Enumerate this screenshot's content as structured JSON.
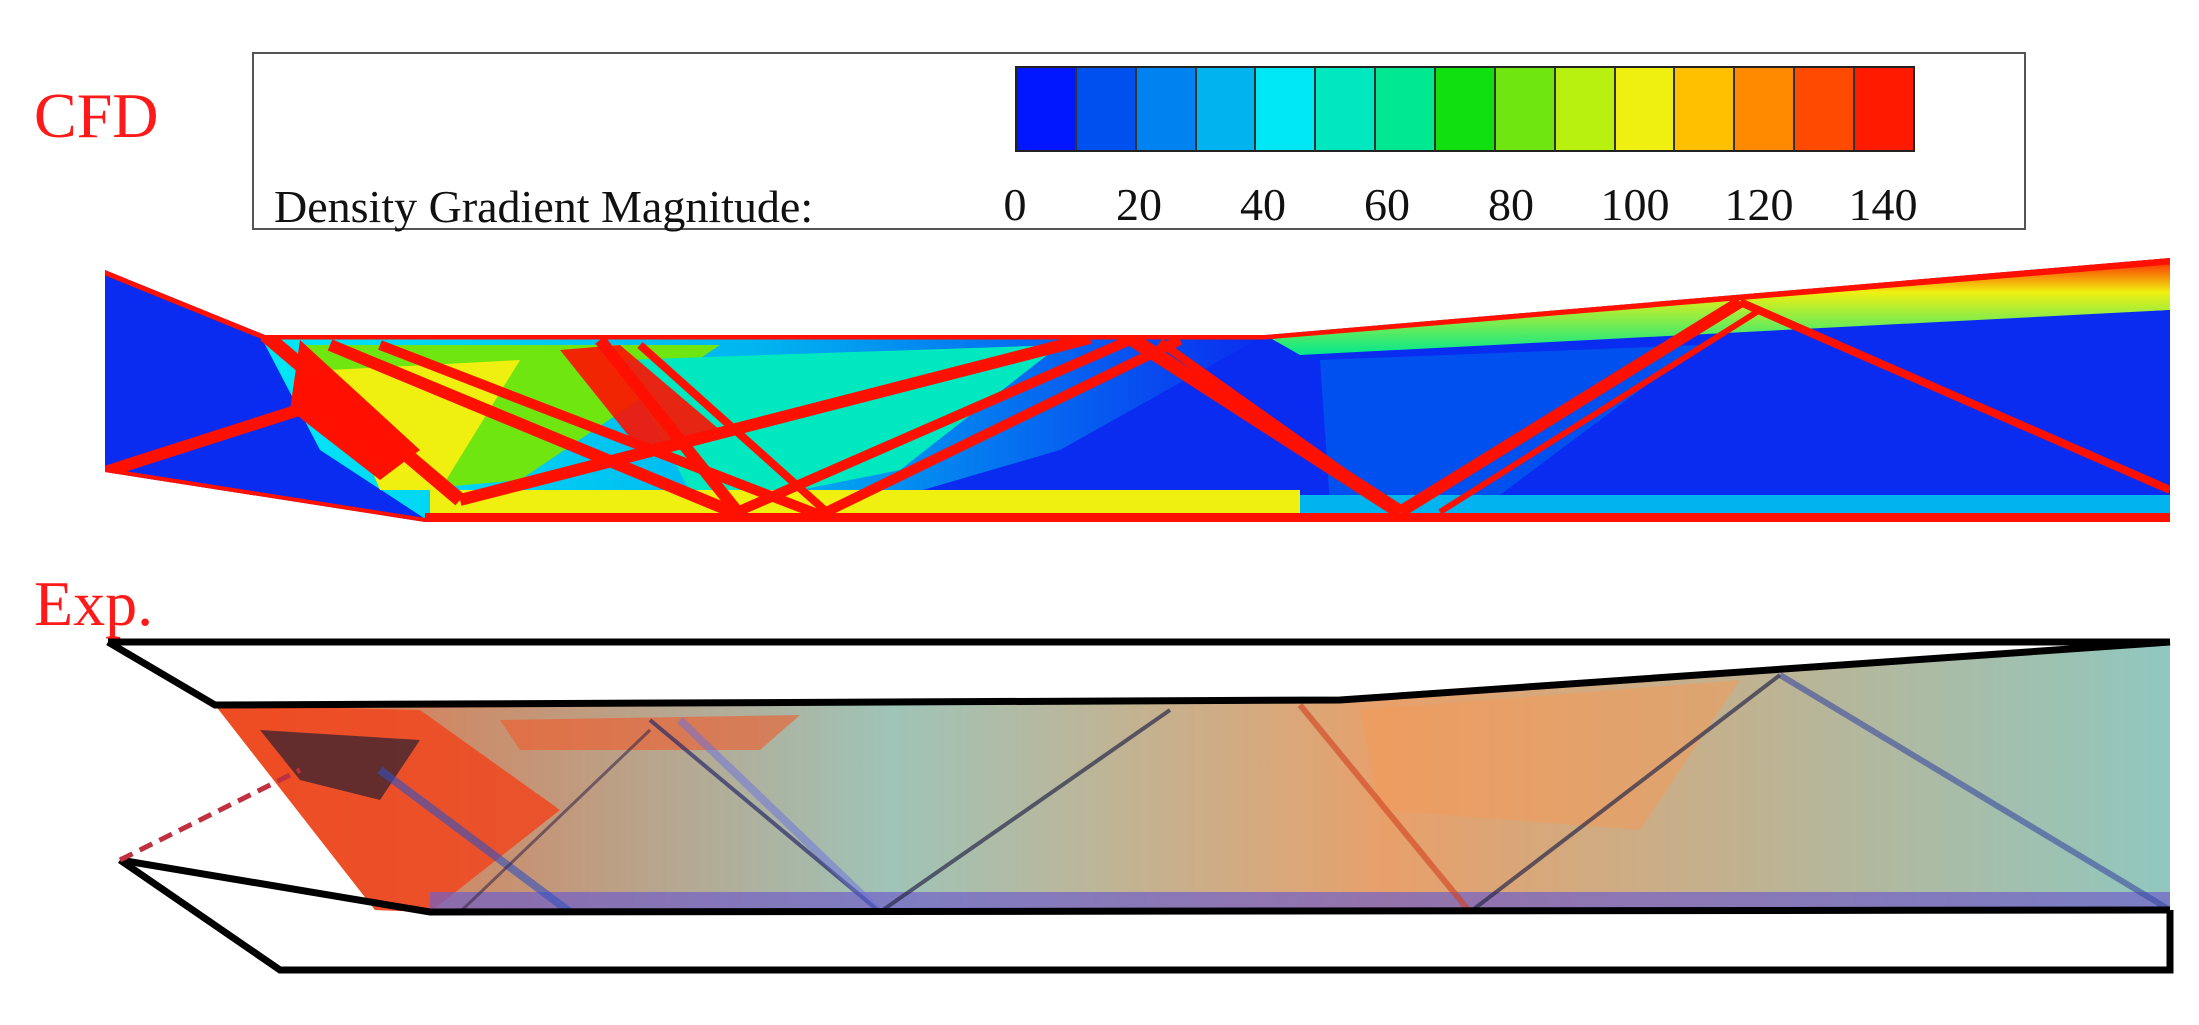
{
  "labels": {
    "cfd": "CFD",
    "exp": "Exp."
  },
  "legend": {
    "title": "Density Gradient Magnitude:",
    "ticks": [
      "0",
      "20",
      "40",
      "60",
      "80",
      "100",
      "120",
      "140"
    ],
    "colors": [
      "#0016ff",
      "#0050f0",
      "#0082f0",
      "#00b4f0",
      "#00e8f6",
      "#00e8c0",
      "#00e890",
      "#10e010",
      "#70e610",
      "#b8f010",
      "#f0f010",
      "#ffc000",
      "#ff8a00",
      "#ff4a00",
      "#ff1a00"
    ]
  },
  "colors": {
    "label_red": "#ff1a1a",
    "cfd_blue": "#0a2cf0",
    "shock_red": "#ff1000",
    "exp_tint": "#f29a5a"
  }
}
